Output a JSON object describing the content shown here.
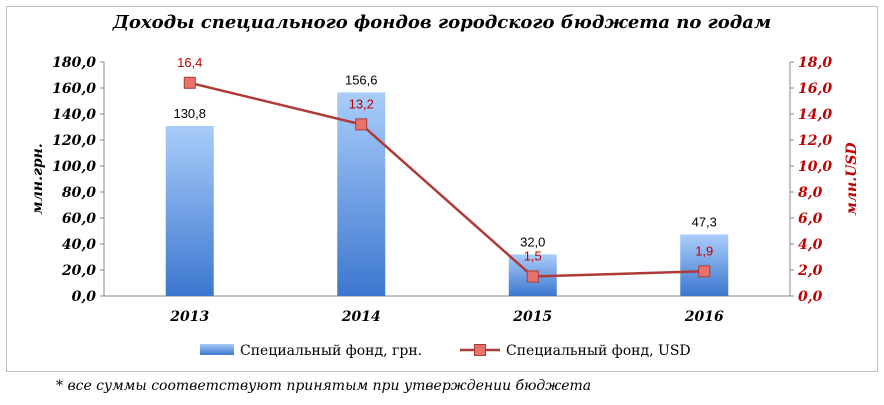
{
  "title": "Доходы  специального фондов городского бюджета по годам",
  "footnote": "* все суммы соответствуют принятым при утверждении бюджета",
  "colors": {
    "bar": "#6ea6ef",
    "bar_dark": "#3d79d0",
    "line": "#b03a36",
    "marker": "#e8736d",
    "axis_right": "#c00000"
  },
  "chart_data": {
    "type": "bar",
    "categories": [
      "2013",
      "2014",
      "2015",
      "2016"
    ],
    "series": [
      {
        "name": "Специальный фонд, грн.",
        "type": "bar",
        "axis": "left",
        "values": [
          130.8,
          156.6,
          32.0,
          47.3
        ],
        "labels": [
          "130,8",
          "156,6",
          "32,0",
          "47,3"
        ]
      },
      {
        "name": "Специальный фонд, USD",
        "type": "line",
        "axis": "right",
        "values": [
          16.4,
          13.2,
          1.5,
          1.9
        ],
        "labels": [
          "16,4",
          "13,2",
          "1,5",
          "1,9"
        ]
      }
    ],
    "ylabel": "млн.грн.",
    "ylabel_right": "млн.USD",
    "ylim": [
      0,
      180
    ],
    "ylim_right": [
      0,
      18
    ],
    "yticks": [
      "0,0",
      "20,0",
      "40,0",
      "60,0",
      "80,0",
      "100,0",
      "120,0",
      "140,0",
      "160,0",
      "180,0"
    ],
    "yticks_right": [
      "0,0",
      "2,0",
      "4,0",
      "6,0",
      "8,0",
      "10,0",
      "12,0",
      "14,0",
      "16,0",
      "18,0"
    ],
    "grid": false,
    "legend": "bottom"
  }
}
